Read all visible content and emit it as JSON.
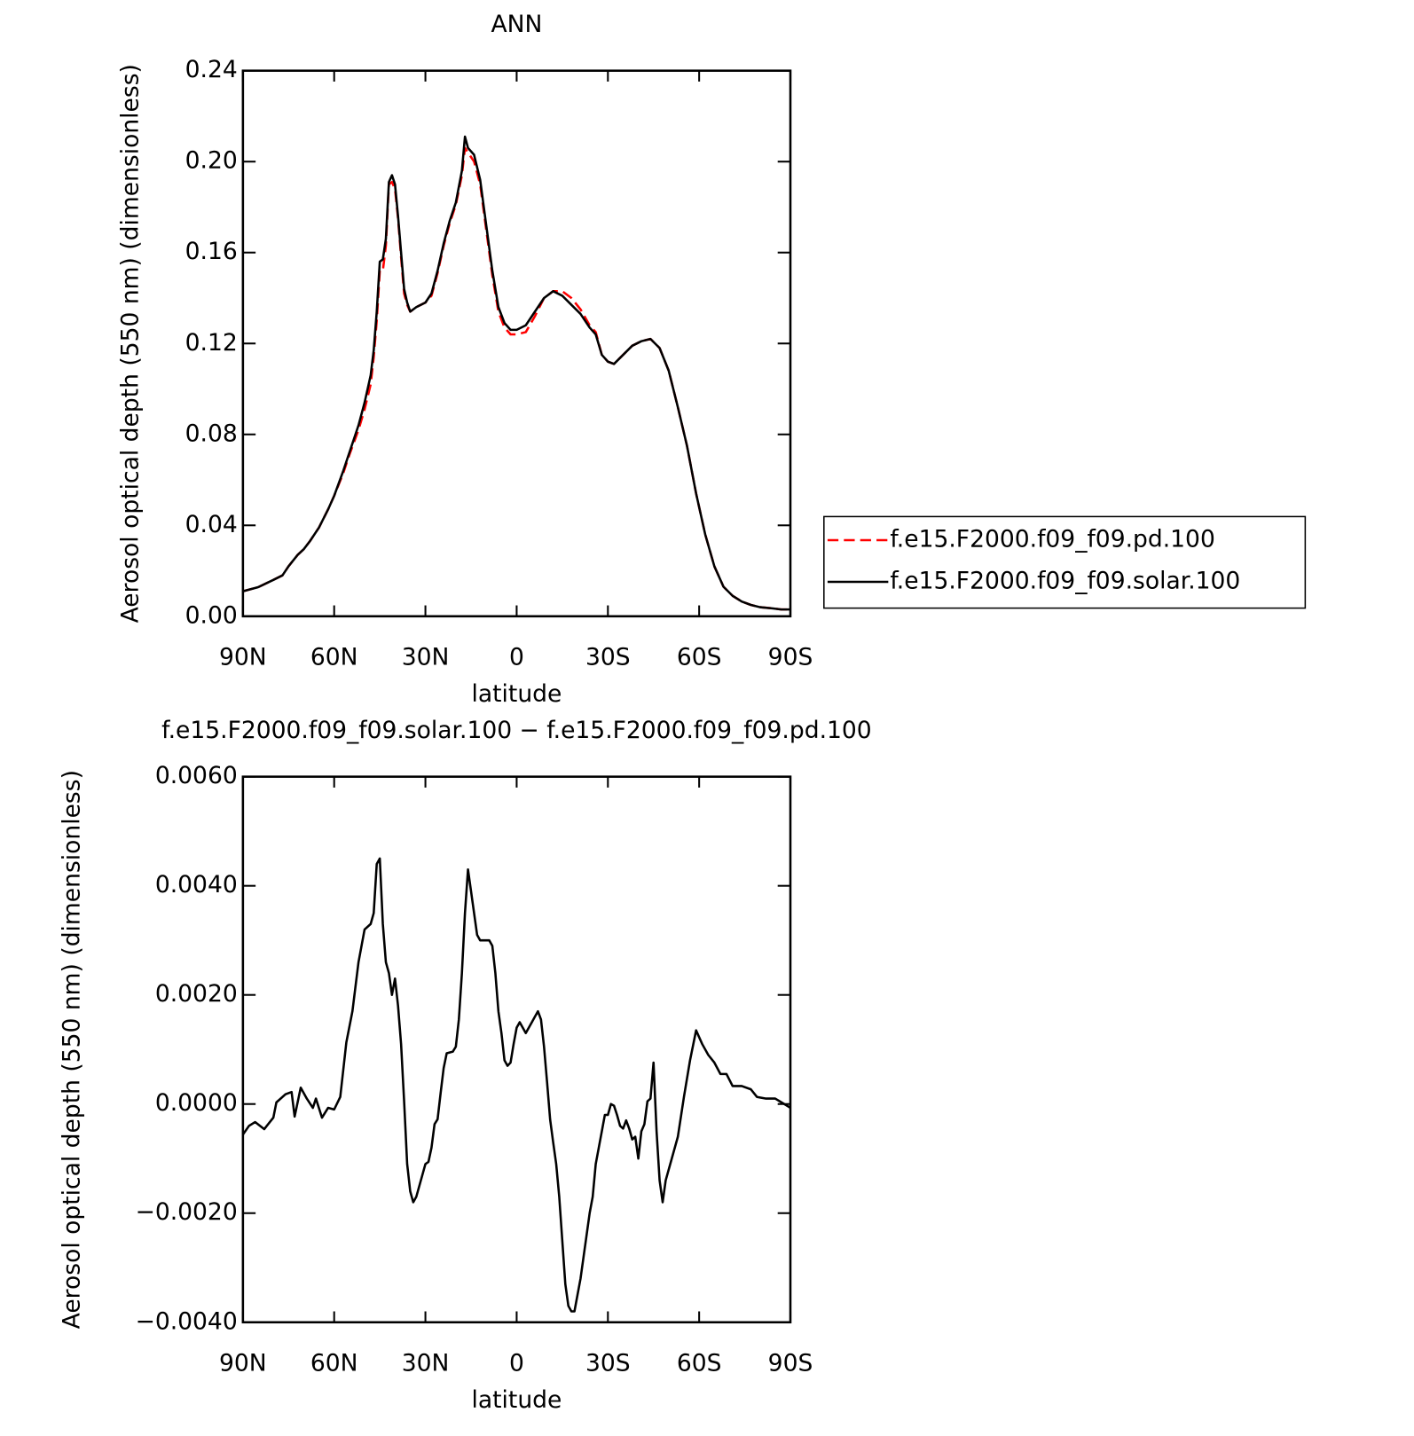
{
  "chart_data": [
    {
      "type": "line",
      "title": "ANN",
      "xlabel": "latitude",
      "ylabel": "Aerosol optical depth (550 nm) (dimensionless)",
      "x": [
        90,
        85,
        80,
        77,
        75,
        72,
        70,
        68,
        65,
        62,
        60,
        57,
        55,
        52,
        50,
        48,
        47,
        46,
        45,
        44,
        43,
        42,
        41,
        40,
        39,
        38,
        37,
        36,
        35,
        33,
        30,
        28,
        26,
        24,
        22,
        20,
        18,
        17,
        16,
        14,
        12,
        10,
        8,
        6,
        4,
        2,
        0,
        -3,
        -6,
        -9,
        -12,
        -15,
        -18,
        -21,
        -24,
        -26,
        -28,
        -30,
        -32,
        -35,
        -38,
        -41,
        -44,
        -47,
        -50,
        -53,
        -56,
        -59,
        -62,
        -65,
        -68,
        -71,
        -74,
        -77,
        -80,
        -84,
        -87,
        -90
      ],
      "series": [
        {
          "name": "f.e15.F2000.f09_f09.pd.100",
          "color": "#ff0000",
          "dash": true,
          "values": [
            0.011,
            0.0128,
            0.016,
            0.018,
            0.022,
            0.027,
            0.0295,
            0.033,
            0.039,
            0.047,
            0.053,
            0.063,
            0.071,
            0.082,
            0.091,
            0.102,
            0.114,
            0.13,
            0.152,
            0.152,
            0.163,
            0.19,
            0.191,
            0.188,
            0.175,
            0.158,
            0.142,
            0.137,
            0.134,
            0.136,
            0.138,
            0.141,
            0.151,
            0.163,
            0.173,
            0.181,
            0.194,
            0.206,
            0.204,
            0.2,
            0.19,
            0.17,
            0.15,
            0.134,
            0.127,
            0.124,
            0.124,
            0.125,
            0.132,
            0.14,
            0.143,
            0.143,
            0.14,
            0.135,
            0.128,
            0.125,
            0.115,
            0.112,
            0.111,
            0.115,
            0.119,
            0.121,
            0.122,
            0.118,
            0.108,
            0.092,
            0.075,
            0.054,
            0.036,
            0.022,
            0.013,
            0.009,
            0.0065,
            0.005,
            0.004,
            0.0035,
            0.003,
            0.003
          ]
        },
        {
          "name": "f.e15.F2000.f09_f09.solar.100",
          "color": "#000000",
          "dash": false,
          "values": [
            0.011,
            0.0128,
            0.016,
            0.018,
            0.022,
            0.027,
            0.0295,
            0.033,
            0.039,
            0.047,
            0.053,
            0.064,
            0.072,
            0.084,
            0.094,
            0.106,
            0.117,
            0.134,
            0.156,
            0.157,
            0.166,
            0.191,
            0.194,
            0.19,
            0.176,
            0.16,
            0.144,
            0.138,
            0.134,
            0.136,
            0.138,
            0.142,
            0.152,
            0.164,
            0.174,
            0.182,
            0.196,
            0.211,
            0.206,
            0.203,
            0.192,
            0.172,
            0.152,
            0.136,
            0.129,
            0.126,
            0.126,
            0.128,
            0.134,
            0.14,
            0.143,
            0.141,
            0.137,
            0.133,
            0.127,
            0.124,
            0.115,
            0.112,
            0.111,
            0.115,
            0.119,
            0.121,
            0.122,
            0.118,
            0.108,
            0.092,
            0.075,
            0.054,
            0.036,
            0.022,
            0.013,
            0.009,
            0.0065,
            0.005,
            0.004,
            0.0035,
            0.003,
            0.003
          ]
        }
      ],
      "xlim": [
        90,
        -90
      ],
      "xticks": [
        {
          "value": 90,
          "label": "90N"
        },
        {
          "value": 60,
          "label": "60N"
        },
        {
          "value": 30,
          "label": "30N"
        },
        0,
        {
          "value": -30,
          "label": "30S"
        },
        {
          "value": -60,
          "label": "60S"
        },
        {
          "value": -90,
          "label": "90S"
        }
      ],
      "ylim": [
        0,
        0.24
      ],
      "yticks": [
        {
          "value": 0,
          "label": "0.00"
        },
        {
          "value": 0.04,
          "label": "0.04"
        },
        {
          "value": 0.08,
          "label": "0.08"
        },
        {
          "value": 0.12,
          "label": "0.12"
        },
        {
          "value": 0.16,
          "label": "0.16"
        },
        {
          "value": 0.2,
          "label": "0.20"
        },
        {
          "value": 0.24,
          "label": "0.24"
        }
      ],
      "legend": "right"
    },
    {
      "type": "line",
      "title": "f.e15.F2000.f09_f09.solar.100 − f.e15.F2000.f09_f09.pd.100",
      "xlabel": "latitude",
      "ylabel": "Aerosol optical depth (550 nm) (dimensionless)",
      "x": [
        90,
        88,
        86,
        83,
        80,
        79,
        76,
        74,
        73,
        71,
        69,
        67,
        66,
        64,
        62,
        60,
        58,
        56,
        54,
        52,
        50,
        48,
        47,
        46,
        45,
        44,
        43,
        42,
        41,
        40,
        39,
        38,
        37,
        36,
        35,
        34,
        33,
        31,
        30,
        29,
        28,
        27,
        26,
        25,
        24,
        23,
        21,
        20,
        19,
        18,
        17,
        16,
        15,
        14,
        13,
        12,
        11,
        9,
        8,
        7,
        6,
        5,
        4,
        3,
        2,
        1,
        0,
        -1,
        -2,
        -3,
        -4,
        -5,
        -6,
        -7,
        -8,
        -9,
        -10,
        -11,
        -12,
        -13,
        -14,
        -15,
        -16,
        -17,
        -18,
        -19,
        -20,
        -21,
        -22,
        -23,
        -24,
        -25,
        -26,
        -27,
        -28,
        -29,
        -30,
        -31,
        -32,
        -33,
        -34,
        -35,
        -36,
        -37,
        -38,
        -39,
        -40,
        -41,
        -42,
        -43,
        -44,
        -45,
        -46,
        -47,
        -48,
        -49,
        -51,
        -53,
        -55,
        -57,
        -59,
        -61,
        -63,
        -65,
        -67,
        -69,
        -71,
        -74,
        -77,
        -79,
        -82,
        -85,
        -88,
        -90
      ],
      "series": [
        {
          "color": "#000000",
          "dash": false,
          "values": [
            -0.00056,
            -0.0004,
            -0.00033,
            -0.00046,
            -0.00025,
            3e-05,
            0.00018,
            0.00022,
            -0.00023,
            0.0003,
            0.0001,
            -7e-05,
            0.0001,
            -0.00025,
            -7e-05,
            -0.0001,
            0.00013,
            0.00113,
            0.0017,
            0.0026,
            0.0032,
            0.0033,
            0.0035,
            0.0044,
            0.0045,
            0.0033,
            0.0026,
            0.0024,
            0.002,
            0.0023,
            0.0018,
            0.0011,
            5e-05,
            -0.0011,
            -0.0016,
            -0.0018,
            -0.0017,
            -0.0013,
            -0.0011,
            -0.00106,
            -0.0008,
            -0.00037,
            -0.00028,
            0.0002,
            0.00066,
            0.00093,
            0.00096,
            0.00105,
            0.00155,
            0.0024,
            0.0035,
            0.0043,
            0.0039,
            0.0035,
            0.0031,
            0.003,
            0.003,
            0.003,
            0.0029,
            0.0024,
            0.0017,
            0.0013,
            0.0008,
            0.0007,
            0.00076,
            0.0011,
            0.0014,
            0.0015,
            0.0014,
            0.0013,
            0.0014,
            0.0015,
            0.0016,
            0.0017,
            0.00155,
            0.00105,
            0.0004,
            -0.00028,
            -0.0007,
            -0.0011,
            -0.0017,
            -0.0025,
            -0.0033,
            -0.0037,
            -0.0038,
            -0.0038,
            -0.0035,
            -0.0032,
            -0.0028,
            -0.0024,
            -0.002,
            -0.0017,
            -0.0011,
            -0.0008,
            -0.0005,
            -0.0002,
            -0.0002,
            0,
            -3e-05,
            -0.0002,
            -0.0004,
            -0.00045,
            -0.0003,
            -0.00045,
            -0.00065,
            -0.0006,
            -0.001,
            -0.0005,
            -0.00037,
            5e-05,
            0.0001,
            0.00076,
            -0.0005,
            -0.0014,
            -0.0018,
            -0.0014,
            -0.001,
            -0.0006,
            0.00013,
            0.0008,
            0.00135,
            0.0011,
            0.0009,
            0.00076,
            0.00055,
            0.00055,
            0.00033,
            0.00033,
            0.00027,
            0.00013,
            0.0001,
            0.0001,
            0,
            -7e-05
          ]
        }
      ],
      "xlim": [
        90,
        -90
      ],
      "xticks": [
        {
          "value": 90,
          "label": "90N"
        },
        {
          "value": 60,
          "label": "60N"
        },
        {
          "value": 30,
          "label": "30N"
        },
        0,
        {
          "value": -30,
          "label": "30S"
        },
        {
          "value": -60,
          "label": "60S"
        },
        {
          "value": -90,
          "label": "90S"
        }
      ],
      "ylim": [
        -0.004,
        0.006
      ],
      "yticks": [
        {
          "value": -0.004,
          "label": "−0.0040"
        },
        {
          "value": -0.002,
          "label": "−0.0020"
        },
        {
          "value": 0,
          "label": "0.0000"
        },
        {
          "value": 0.002,
          "label": "0.0020"
        },
        {
          "value": 0.004,
          "label": "0.0040"
        },
        {
          "value": 0.006,
          "label": "0.0060"
        }
      ]
    }
  ]
}
